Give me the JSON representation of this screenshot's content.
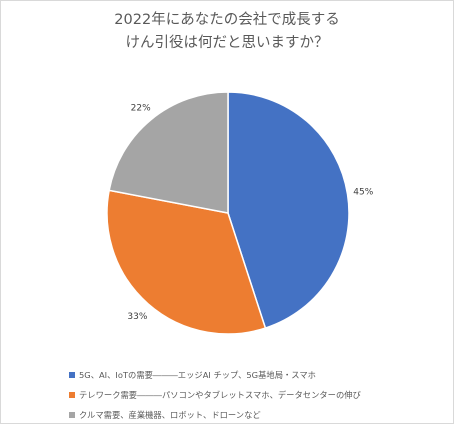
{
  "chart_data": {
    "type": "pie",
    "title_lines": [
      "2022年にあなたの会社で成長する",
      "けん引役は何だと思いますか？"
    ],
    "slices": [
      {
        "label": "5G、AI、IoTの需要―――エッジAI チップ、5G基地局・スマホ",
        "value": 45,
        "value_label": "45%",
        "color": "#4472c4"
      },
      {
        "label": "テレワーク需要―――パソコンやタブレットスマホ、データセンターの伸び",
        "value": 33,
        "value_label": "33%",
        "color": "#ed7d31"
      },
      {
        "label": "クルマ需要、産業機器、ロボット、ドローンなど",
        "value": 22,
        "value_label": "22%",
        "color": "#a5a5a5"
      }
    ],
    "legend_position": "bottom-left"
  }
}
